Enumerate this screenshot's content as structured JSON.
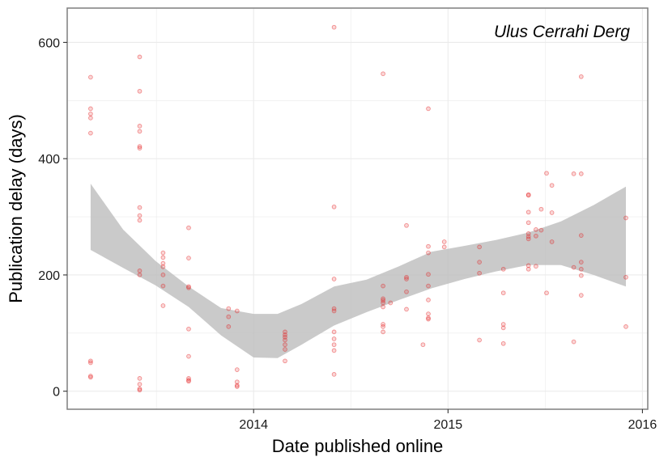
{
  "chart_data": {
    "type": "scatter",
    "annotation": "Ulus Cerrahi Derg",
    "xlabel": "Date published online",
    "ylabel": "Publication delay (days)",
    "xlim": [
      "2013-01-16",
      "2016-01-11"
    ],
    "ylim": [
      -31,
      659
    ],
    "x_ticks": [
      {
        "date": "2014-01-01",
        "label": "2014"
      },
      {
        "date": "2015-01-01",
        "label": "2015"
      },
      {
        "date": "2016-01-01",
        "label": "2016"
      }
    ],
    "y_ticks": [
      0,
      200,
      400,
      600
    ],
    "grid": true,
    "colors": {
      "points": "#e41a1c",
      "ribbon": "#bdbdbd",
      "panel_border": "#7f7f7f",
      "grid": "#ebebeb"
    },
    "series": [
      {
        "points": [
          [
            "2013-03-01",
            540
          ],
          [
            "2013-03-01",
            486
          ],
          [
            "2013-03-01",
            477
          ],
          [
            "2013-03-01",
            470
          ],
          [
            "2013-03-01",
            444
          ],
          [
            "2013-03-01",
            52
          ],
          [
            "2013-03-01",
            49
          ],
          [
            "2013-03-01",
            26
          ],
          [
            "2013-03-01",
            24
          ],
          [
            "2013-06-01",
            575
          ],
          [
            "2013-06-01",
            516
          ],
          [
            "2013-06-01",
            456
          ],
          [
            "2013-06-01",
            447
          ],
          [
            "2013-06-01",
            421
          ],
          [
            "2013-06-01",
            418
          ],
          [
            "2013-06-01",
            316
          ],
          [
            "2013-06-01",
            302
          ],
          [
            "2013-06-01",
            294
          ],
          [
            "2013-06-01",
            207
          ],
          [
            "2013-06-01",
            200
          ],
          [
            "2013-06-01",
            22
          ],
          [
            "2013-06-01",
            12
          ],
          [
            "2013-06-01",
            4
          ],
          [
            "2013-06-01",
            2
          ],
          [
            "2013-07-15",
            238
          ],
          [
            "2013-07-15",
            230
          ],
          [
            "2013-07-15",
            220
          ],
          [
            "2013-07-15",
            214
          ],
          [
            "2013-07-15",
            200
          ],
          [
            "2013-07-15",
            181
          ],
          [
            "2013-07-15",
            147
          ],
          [
            "2013-09-01",
            281
          ],
          [
            "2013-09-01",
            229
          ],
          [
            "2013-09-01",
            180
          ],
          [
            "2013-09-01",
            178
          ],
          [
            "2013-09-01",
            107
          ],
          [
            "2013-09-01",
            60
          ],
          [
            "2013-09-01",
            22
          ],
          [
            "2013-09-01",
            19
          ],
          [
            "2013-09-01",
            17
          ],
          [
            "2013-11-15",
            142
          ],
          [
            "2013-11-15",
            128
          ],
          [
            "2013-11-15",
            111
          ],
          [
            "2013-12-01",
            138
          ],
          [
            "2013-12-01",
            37
          ],
          [
            "2013-12-01",
            16
          ],
          [
            "2013-12-01",
            10
          ],
          [
            "2013-12-01",
            8
          ],
          [
            "2014-03-01",
            102
          ],
          [
            "2014-03-01",
            97
          ],
          [
            "2014-03-01",
            93
          ],
          [
            "2014-03-01",
            88
          ],
          [
            "2014-03-01",
            80
          ],
          [
            "2014-03-01",
            72
          ],
          [
            "2014-03-01",
            52
          ],
          [
            "2014-06-01",
            626
          ],
          [
            "2014-06-01",
            317
          ],
          [
            "2014-06-01",
            193
          ],
          [
            "2014-06-01",
            142
          ],
          [
            "2014-06-01",
            138
          ],
          [
            "2014-06-01",
            102
          ],
          [
            "2014-06-01",
            90
          ],
          [
            "2014-06-01",
            80
          ],
          [
            "2014-06-01",
            70
          ],
          [
            "2014-06-01",
            29
          ],
          [
            "2014-09-01",
            546
          ],
          [
            "2014-09-01",
            181
          ],
          [
            "2014-09-01",
            159
          ],
          [
            "2014-09-01",
            156
          ],
          [
            "2014-09-01",
            152
          ],
          [
            "2014-09-01",
            145
          ],
          [
            "2014-09-01",
            115
          ],
          [
            "2014-09-01",
            111
          ],
          [
            "2014-09-01",
            102
          ],
          [
            "2014-09-15",
            152
          ],
          [
            "2014-10-15",
            285
          ],
          [
            "2014-10-15",
            196
          ],
          [
            "2014-10-15",
            193
          ],
          [
            "2014-10-15",
            171
          ],
          [
            "2014-10-15",
            141
          ],
          [
            "2014-11-15",
            80
          ],
          [
            "2014-11-25",
            486
          ],
          [
            "2014-11-25",
            249
          ],
          [
            "2014-11-25",
            238
          ],
          [
            "2014-11-25",
            201
          ],
          [
            "2014-11-25",
            181
          ],
          [
            "2014-11-25",
            157
          ],
          [
            "2014-11-25",
            133
          ],
          [
            "2014-11-25",
            126
          ],
          [
            "2014-11-25",
            124
          ],
          [
            "2014-12-25",
            257
          ],
          [
            "2014-12-25",
            248
          ],
          [
            "2015-03-01",
            248
          ],
          [
            "2015-03-01",
            222
          ],
          [
            "2015-03-01",
            203
          ],
          [
            "2015-03-01",
            88
          ],
          [
            "2015-04-15",
            210
          ],
          [
            "2015-04-15",
            169
          ],
          [
            "2015-04-15",
            115
          ],
          [
            "2015-04-15",
            109
          ],
          [
            "2015-04-15",
            82
          ],
          [
            "2015-06-01",
            338
          ],
          [
            "2015-06-01",
            337
          ],
          [
            "2015-06-01",
            308
          ],
          [
            "2015-06-01",
            290
          ],
          [
            "2015-06-01",
            271
          ],
          [
            "2015-06-01",
            266
          ],
          [
            "2015-06-01",
            262
          ],
          [
            "2015-06-01",
            216
          ],
          [
            "2015-06-01",
            210
          ],
          [
            "2015-06-15",
            278
          ],
          [
            "2015-06-15",
            267
          ],
          [
            "2015-06-15",
            215
          ],
          [
            "2015-06-25",
            313
          ],
          [
            "2015-06-25",
            277
          ],
          [
            "2015-07-05",
            375
          ],
          [
            "2015-07-05",
            169
          ],
          [
            "2015-07-15",
            354
          ],
          [
            "2015-07-15",
            307
          ],
          [
            "2015-07-15",
            257
          ],
          [
            "2015-08-25",
            374
          ],
          [
            "2015-08-25",
            85
          ],
          [
            "2015-08-25",
            213
          ],
          [
            "2015-09-08",
            541
          ],
          [
            "2015-09-08",
            374
          ],
          [
            "2015-09-08",
            268
          ],
          [
            "2015-09-08",
            222
          ],
          [
            "2015-09-08",
            210
          ],
          [
            "2015-09-08",
            199
          ],
          [
            "2015-09-08",
            165
          ],
          [
            "2015-12-01",
            298
          ],
          [
            "2015-12-01",
            196
          ],
          [
            "2015-12-01",
            111
          ]
        ]
      }
    ],
    "ribbon": [
      {
        "x": "2013-03-01",
        "lower": 243,
        "upper": 357
      },
      {
        "x": "2013-05-01",
        "lower": 212,
        "upper": 278
      },
      {
        "x": "2013-07-01",
        "lower": 182,
        "upper": 224
      },
      {
        "x": "2013-09-01",
        "lower": 145,
        "upper": 180
      },
      {
        "x": "2013-11-01",
        "lower": 96,
        "upper": 143
      },
      {
        "x": "2014-01-01",
        "lower": 58,
        "upper": 133
      },
      {
        "x": "2014-02-15",
        "lower": 57,
        "upper": 133
      },
      {
        "x": "2014-04-01",
        "lower": 80,
        "upper": 150
      },
      {
        "x": "2014-06-01",
        "lower": 113,
        "upper": 180
      },
      {
        "x": "2014-08-01",
        "lower": 136,
        "upper": 192
      },
      {
        "x": "2014-10-01",
        "lower": 157,
        "upper": 215
      },
      {
        "x": "2014-12-01",
        "lower": 177,
        "upper": 240
      },
      {
        "x": "2015-02-01",
        "lower": 193,
        "upper": 250
      },
      {
        "x": "2015-04-01",
        "lower": 206,
        "upper": 260
      },
      {
        "x": "2015-06-01",
        "lower": 217,
        "upper": 273
      },
      {
        "x": "2015-08-01",
        "lower": 217,
        "upper": 292
      },
      {
        "x": "2015-10-01",
        "lower": 200,
        "upper": 320
      },
      {
        "x": "2015-12-01",
        "lower": 180,
        "upper": 352
      }
    ]
  }
}
